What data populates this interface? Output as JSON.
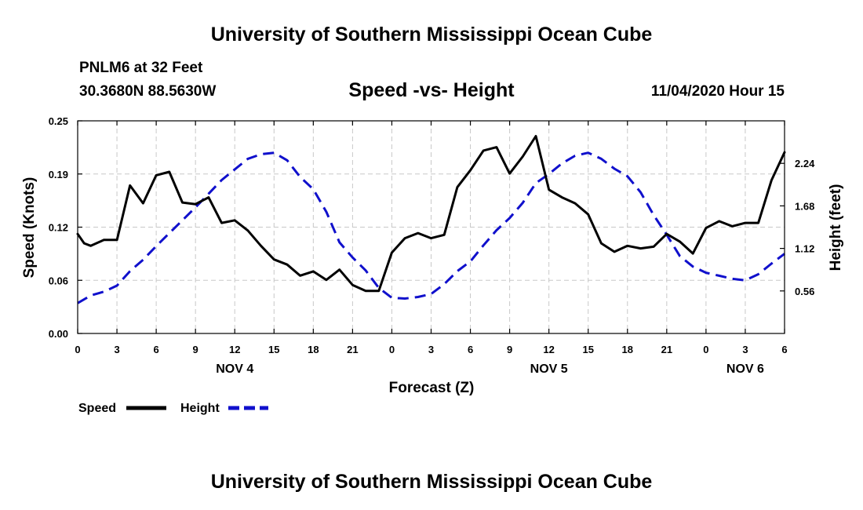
{
  "header": {
    "title_top": "University of Southern Mississippi Ocean Cube",
    "title_bottom": "University of Southern Mississippi Ocean Cube",
    "station": "PNLM6 at 32 Feet",
    "coords": "30.3680N 88.5630W",
    "subtitle": "Speed -vs- Height",
    "datestamp": "11/04/2020 Hour 15"
  },
  "chart_data": {
    "type": "line",
    "title": "Speed -vs- Height",
    "xlabel": "Forecast (Z)",
    "ylabel_left": "Speed (Knots)",
    "ylabel_right": "Height (feet)",
    "x_range": [
      0,
      54
    ],
    "x_ticks": [
      0,
      3,
      6,
      9,
      12,
      15,
      18,
      21,
      24,
      27,
      30,
      33,
      36,
      39,
      42,
      45,
      48,
      51,
      54
    ],
    "x_tick_labels": [
      "0",
      "3",
      "6",
      "9",
      "12",
      "15",
      "18",
      "21",
      "0",
      "3",
      "6",
      "9",
      "12",
      "15",
      "18",
      "21",
      "0",
      "3",
      "6"
    ],
    "day_labels": [
      {
        "x": 12,
        "label": "NOV 4"
      },
      {
        "x": 36,
        "label": "NOV 5"
      },
      {
        "x": 51,
        "label": "NOV 6"
      }
    ],
    "y_left_range": [
      0,
      0.25
    ],
    "y_left_ticks": [
      0.0,
      0.0625,
      0.125,
      0.1875,
      0.25
    ],
    "y_left_tick_labels": [
      "0.00",
      "0.06",
      "0.12",
      "0.19",
      "0.25"
    ],
    "y_right_range": [
      0,
      2.8
    ],
    "y_right_ticks": [
      0.56,
      1.12,
      1.68,
      2.24
    ],
    "y_right_tick_labels": [
      "0.56",
      "1.12",
      "1.68",
      "2.24"
    ],
    "grid": true,
    "series": [
      {
        "name": "Speed",
        "axis": "left",
        "color": "#000000",
        "dash": "solid",
        "x": [
          0,
          0.5,
          1,
          2,
          3,
          4,
          5,
          6,
          7,
          8,
          9,
          10,
          11,
          12,
          13,
          14,
          15,
          16,
          17,
          18,
          19,
          20,
          21,
          22,
          23,
          24,
          25,
          26,
          27,
          28,
          29,
          30,
          31,
          32,
          33,
          34,
          35,
          36,
          37,
          38,
          39,
          40,
          41,
          42,
          43,
          44,
          45,
          46,
          47,
          48,
          49,
          50,
          51,
          52,
          53,
          54
        ],
        "values": [
          0.117,
          0.106,
          0.103,
          0.11,
          0.11,
          0.174,
          0.153,
          0.186,
          0.19,
          0.154,
          0.152,
          0.16,
          0.13,
          0.133,
          0.121,
          0.103,
          0.087,
          0.081,
          0.068,
          0.073,
          0.063,
          0.075,
          0.057,
          0.05,
          0.05,
          0.095,
          0.112,
          0.118,
          0.112,
          0.116,
          0.172,
          0.192,
          0.215,
          0.219,
          0.188,
          0.208,
          0.232,
          0.169,
          0.16,
          0.153,
          0.14,
          0.106,
          0.096,
          0.103,
          0.1,
          0.102,
          0.117,
          0.108,
          0.094,
          0.124,
          0.132,
          0.126,
          0.13,
          0.13,
          0.18,
          0.213
        ]
      },
      {
        "name": "Height",
        "axis": "right",
        "color": "#1010cc",
        "dash": "dashed",
        "x": [
          0,
          1,
          2,
          3,
          4,
          5,
          6,
          7,
          8,
          9,
          10,
          11,
          12,
          13,
          14,
          15,
          16,
          17,
          18,
          19,
          20,
          21,
          22,
          23,
          24,
          25,
          26,
          27,
          28,
          29,
          30,
          31,
          32,
          33,
          34,
          35,
          36,
          37,
          38,
          39,
          40,
          41,
          42,
          43,
          44,
          45,
          46,
          47,
          48,
          49,
          50,
          51,
          52,
          53,
          54
        ],
        "values": [
          0.4,
          0.5,
          0.55,
          0.63,
          0.82,
          0.97,
          1.15,
          1.32,
          1.49,
          1.66,
          1.84,
          2.02,
          2.16,
          2.3,
          2.36,
          2.38,
          2.28,
          2.06,
          1.9,
          1.6,
          1.2,
          1.0,
          0.83,
          0.6,
          0.47,
          0.46,
          0.48,
          0.52,
          0.65,
          0.82,
          0.95,
          1.16,
          1.36,
          1.52,
          1.72,
          1.98,
          2.1,
          2.24,
          2.34,
          2.38,
          2.3,
          2.17,
          2.07,
          1.86,
          1.56,
          1.3,
          1.02,
          0.88,
          0.8,
          0.76,
          0.72,
          0.7,
          0.78,
          0.92,
          1.05
        ]
      }
    ]
  }
}
